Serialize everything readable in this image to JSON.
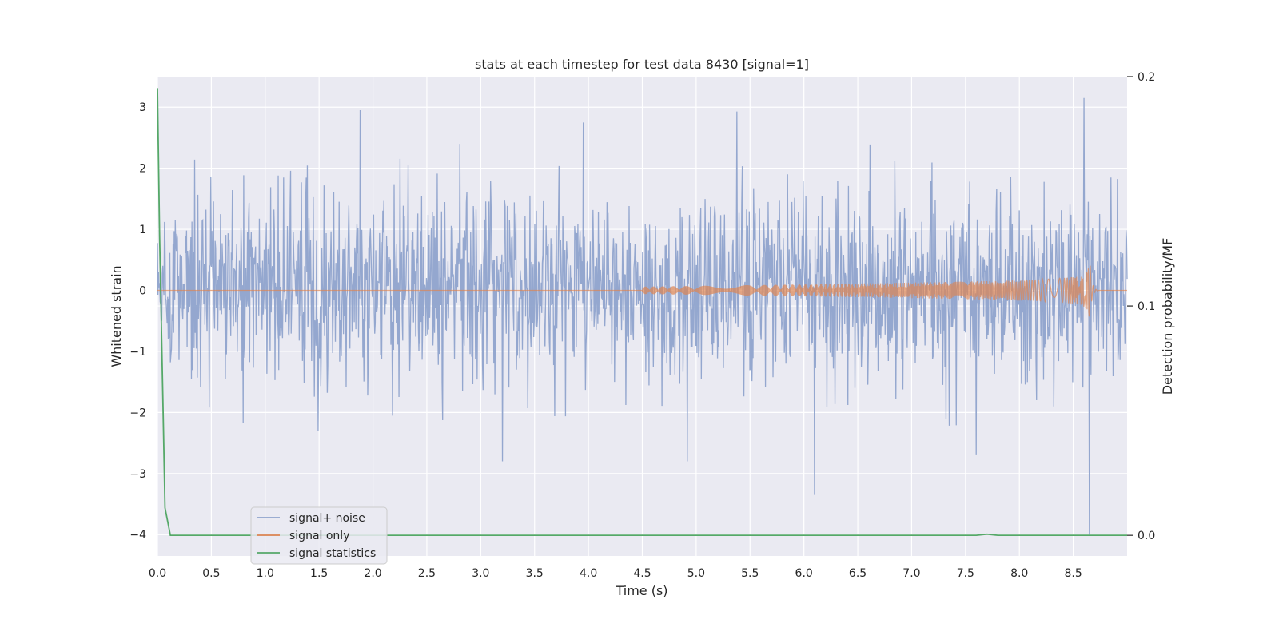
{
  "chart_data": {
    "type": "line",
    "title": "stats at each timestep for test data 8430 [signal=1]",
    "xlabel": "Time (s)",
    "ylabel_left": "Whitened strain",
    "ylabel_right": "Detection probability/MF",
    "xlim": [
      0.0,
      9.0
    ],
    "ylim_left": [
      -4.35,
      3.5
    ],
    "ylim_right": [
      -0.009,
      0.2
    ],
    "xticks": [
      "0.0",
      "0.5",
      "1.0",
      "1.5",
      "2.0",
      "2.5",
      "3.0",
      "3.5",
      "4.0",
      "4.5",
      "5.0",
      "5.5",
      "6.0",
      "6.5",
      "7.0",
      "7.5",
      "8.0",
      "8.5"
    ],
    "yticks_left": [
      "3",
      "2",
      "1",
      "0",
      "−1",
      "−2",
      "−3",
      "−4"
    ],
    "yticks_right": [
      "0.2",
      "0.1",
      "0.0"
    ],
    "grid": true,
    "legend_position": "lower-left",
    "legend": [
      "signal+ noise",
      "signal only",
      "signal statistics"
    ],
    "colors": {
      "noise": "#8fa3cc",
      "signal": "#dd8452",
      "stats": "#55a868",
      "background": "#eaeaf2",
      "grid": "#ffffff"
    },
    "series": [
      {
        "name": "signal+ noise",
        "description_values": "whitened strain noise, mostly within [-2, 2], peaks up to ~3.15 near 8.6 s",
        "peaks": [
          [
            1.88,
            2.95
          ],
          [
            3.95,
            2.75
          ],
          [
            5.38,
            2.93
          ],
          [
            8.6,
            3.15
          ],
          [
            4.92,
            -2.8
          ],
          [
            6.1,
            -3.35
          ],
          [
            8.65,
            -4.0
          ],
          [
            3.2,
            -2.8
          ],
          [
            7.6,
            -2.7
          ]
        ]
      },
      {
        "name": "signal only",
        "chirp_start": 4.5,
        "merger_time": 8.65,
        "merger_amplitude": 0.68,
        "end_time": 9.0
      },
      {
        "name": "signal statistics",
        "axis": "right",
        "x": [
          0.0,
          0.02,
          0.05,
          0.07,
          0.12,
          7.6,
          7.7,
          7.8,
          9.0
        ],
        "y": [
          0.195,
          0.13,
          0.06,
          0.012,
          0.0,
          0.0,
          0.0005,
          0.0,
          0.0
        ]
      }
    ]
  }
}
